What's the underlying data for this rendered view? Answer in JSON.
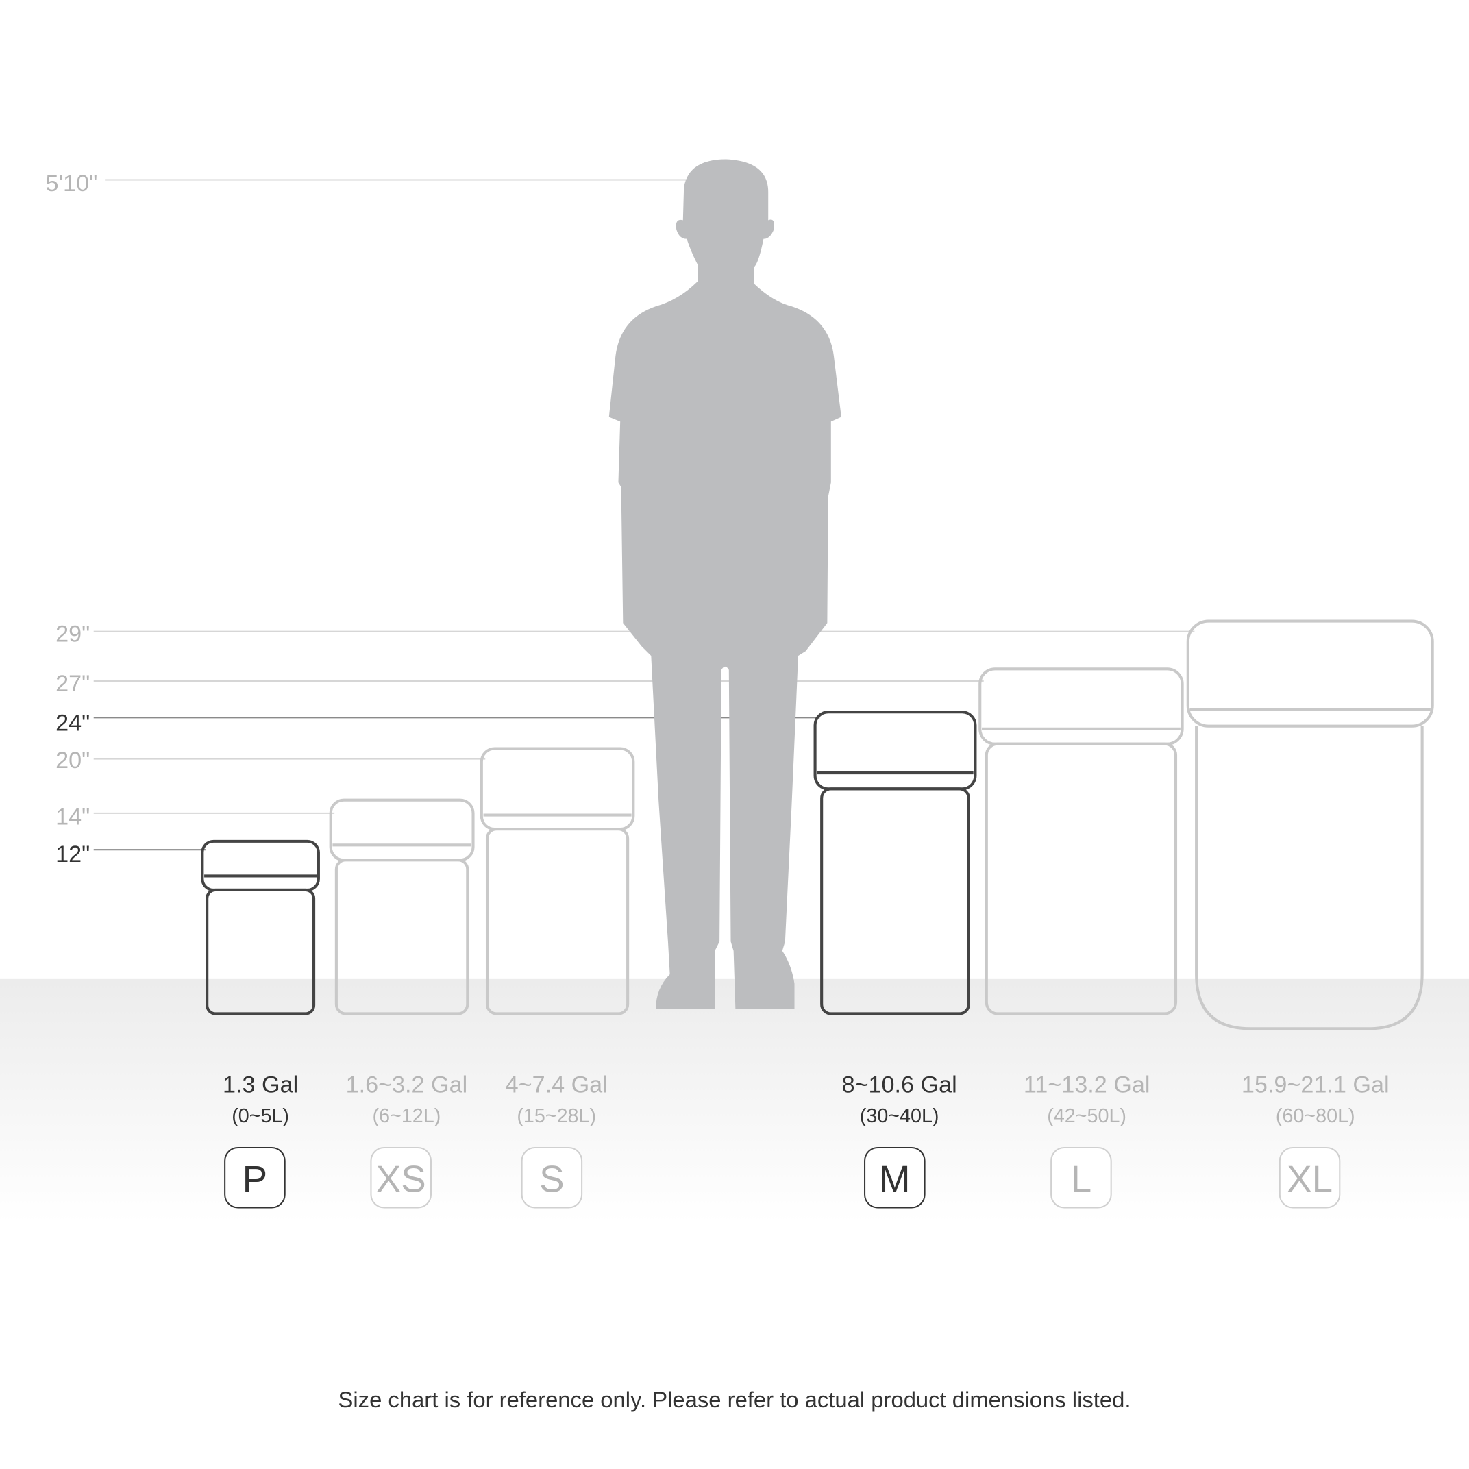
{
  "height_marks": [
    {
      "label": "5'10\"",
      "emphasis": false
    },
    {
      "label": "29\"",
      "emphasis": false
    },
    {
      "label": "27\"",
      "emphasis": false
    },
    {
      "label": "24\"",
      "emphasis": true
    },
    {
      "label": "20\"",
      "emphasis": false
    },
    {
      "label": "14\"",
      "emphasis": false
    },
    {
      "label": "12\"",
      "emphasis": true
    }
  ],
  "sizes": [
    {
      "size": "P",
      "gallons": "1.3 Gal",
      "liters": "(0~5L)",
      "highlighted": true
    },
    {
      "size": "XS",
      "gallons": "1.6~3.2 Gal",
      "liters": "(6~12L)",
      "highlighted": false
    },
    {
      "size": "S",
      "gallons": "4~7.4 Gal",
      "liters": "(15~28L)",
      "highlighted": false
    },
    {
      "size": "M",
      "gallons": "8~10.6 Gal",
      "liters": "(30~40L)",
      "highlighted": true
    },
    {
      "size": "L",
      "gallons": "11~13.2 Gal",
      "liters": "(42~50L)",
      "highlighted": false
    },
    {
      "size": "XL",
      "gallons": "15.9~21.1 Gal",
      "liters": "(60~80L)",
      "highlighted": false
    }
  ],
  "footer": "Size chart is for reference only. Please refer to actual product dimensions listed.",
  "colors": {
    "highlight": "#333333",
    "muted": "#b5b5b5",
    "person": "#bcbdbf"
  }
}
